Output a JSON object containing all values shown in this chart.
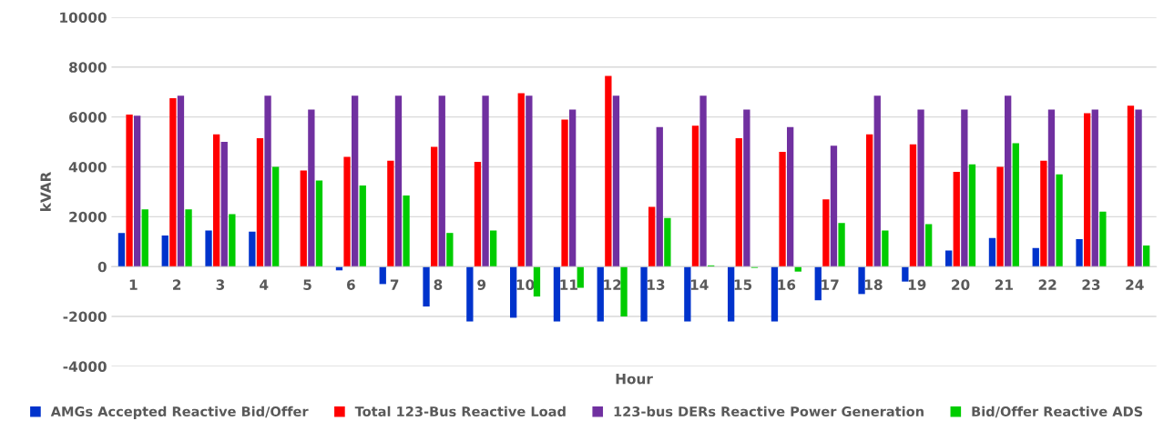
{
  "chart_data": {
    "type": "bar",
    "xlabel": "Hour",
    "ylabel": "kVAR",
    "categories": [
      "1",
      "2",
      "3",
      "4",
      "5",
      "6",
      "7",
      "8",
      "9",
      "10",
      "11",
      "12",
      "13",
      "14",
      "15",
      "16",
      "17",
      "18",
      "19",
      "20",
      "21",
      "22",
      "23",
      "24"
    ],
    "series": [
      {
        "name": "AMGs Accepted Reactive Bid/Offer",
        "color": "#0033cc",
        "values": [
          1350,
          1250,
          1450,
          1400,
          0,
          -150,
          -700,
          -1600,
          -2200,
          -2050,
          -2200,
          -2200,
          -2200,
          -2200,
          -2200,
          -2200,
          -1350,
          -1100,
          -600,
          650,
          1150,
          750,
          1100,
          0
        ]
      },
      {
        "name": "Total 123-Bus Reactive Load",
        "color": "#ff0000",
        "values": [
          6100,
          6750,
          5300,
          5150,
          3850,
          4400,
          4250,
          4800,
          4200,
          6950,
          5900,
          7650,
          2400,
          5650,
          5150,
          4600,
          2700,
          5300,
          4900,
          3800,
          4000,
          4250,
          6150,
          6450
        ]
      },
      {
        "name": "123-bus DERs Reactive Power Generation",
        "color": "#7030a0",
        "values": [
          6050,
          6850,
          5000,
          6850,
          6300,
          6850,
          6850,
          6850,
          6850,
          6850,
          6300,
          6850,
          5600,
          6850,
          6300,
          5600,
          4850,
          6850,
          6300,
          6300,
          6850,
          6300,
          6300,
          6300
        ]
      },
      {
        "name": "Bid/Offer Reactive ADS",
        "color": "#00cc00",
        "values": [
          2300,
          2300,
          2100,
          4000,
          3450,
          3250,
          2850,
          1350,
          1450,
          -1200,
          -850,
          -2000,
          1950,
          50,
          -50,
          -200,
          1750,
          1450,
          1700,
          4100,
          4950,
          3700,
          2200,
          850
        ]
      }
    ],
    "ylim": [
      -4000,
      10000
    ],
    "yticks": [
      -4000,
      -2000,
      0,
      2000,
      4000,
      6000,
      8000,
      10000
    ],
    "grid": "y",
    "legend": "bottom"
  }
}
